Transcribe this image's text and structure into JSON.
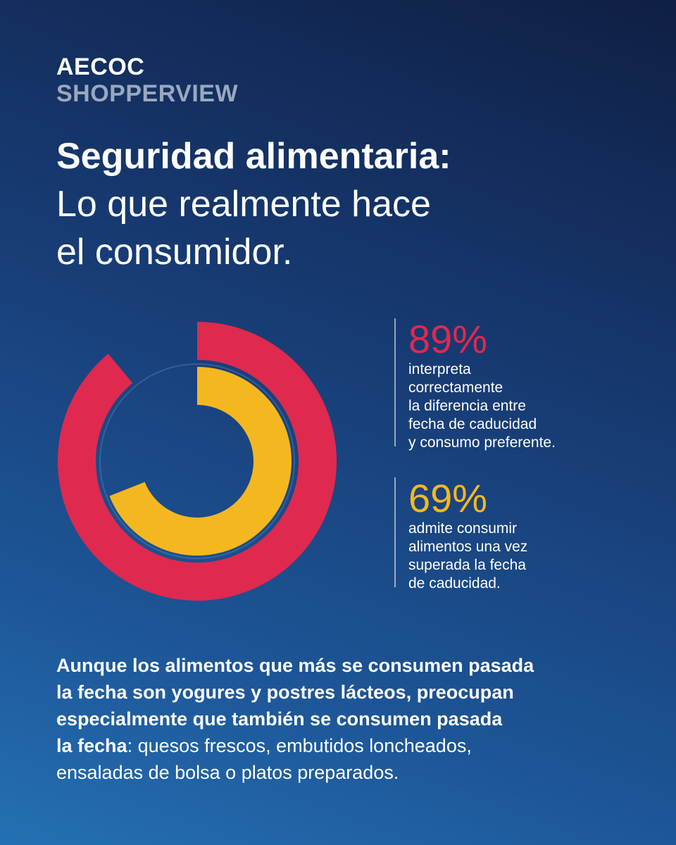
{
  "brand": {
    "line1": "AECOC",
    "line2": "SHOPPERVIEW"
  },
  "headline": {
    "line1": "Seguridad alimentaria:",
    "line2": "Lo que realmente hace",
    "line3": "el consumidor."
  },
  "colors": {
    "red": "#e0294f",
    "yellow": "#f5b71f",
    "track": "#6f8fbc",
    "background_top": "#0f1f44",
    "background_bottom": "#2470b4"
  },
  "chart_data": {
    "type": "radial-bar",
    "title": "",
    "series": [
      {
        "value": 89,
        "unit": "%",
        "color": "#e0294f"
      },
      {
        "value": 69,
        "unit": "%",
        "color": "#f5b71f"
      }
    ],
    "max": 100
  },
  "stats": [
    {
      "value": "89%",
      "lines": [
        "interpreta",
        "correctamente",
        "la diferencia entre",
        "fecha de caducidad",
        "y consumo preferente."
      ]
    },
    {
      "value": "69%",
      "lines": [
        "admite consumir",
        "alimentos una vez",
        "superada la fecha",
        "de caducidad."
      ]
    }
  ],
  "body": {
    "l1": "Aunque los alimentos que más se consumen pasada",
    "l2": "la fecha son yogures y postres lácteos, preocupan",
    "l3": "especialmente que también se consumen pasada",
    "l4_bold": "la fecha",
    "l4_rest": ": quesos frescos, embutidos loncheados,",
    "l5": "ensaladas de bolsa o platos preparados."
  }
}
